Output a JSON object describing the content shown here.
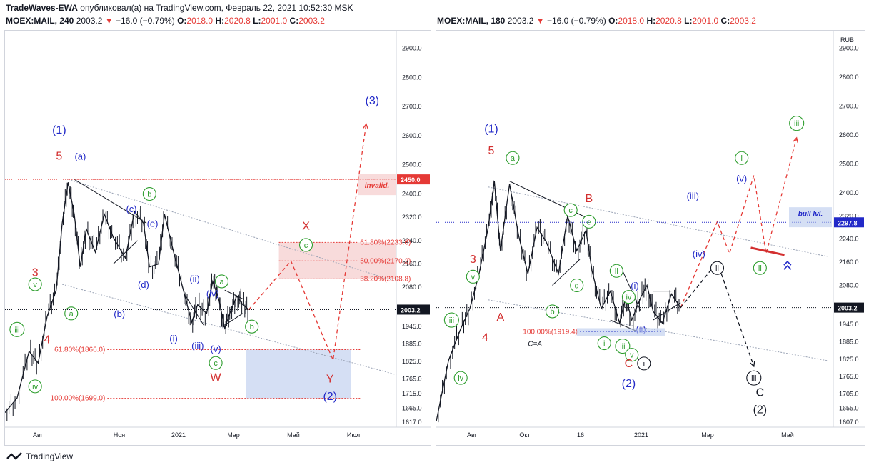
{
  "header": {
    "publisher": "TradeWaves-EWA",
    "published_text": "опубликовал(а) на TradingView.com, Февраль 22, 2021 10:52:30 MSK"
  },
  "colors": {
    "wave_blue": "#2229c8",
    "wave_green": "#2e9e2e",
    "wave_red": "#d32f2f",
    "target_red": "#e53935",
    "candle": "#131722",
    "zone_red": "#f3c3c3",
    "zone_blue": "#b9c9ec"
  },
  "panels": [
    {
      "symbol": "MOEX:MAIL, 240",
      "last": "2003.2",
      "change": "−16.0 (−0.79%)",
      "o_label": "O:",
      "o": "2018.0",
      "h_label": "H:",
      "h": "2020.8",
      "l_label": "L:",
      "l": "2001.0",
      "c_label": "C:",
      "c": "2003.2"
    },
    {
      "symbol": "MOEX:MAIL, 180",
      "last": "2003.2",
      "change": "−16.0 (−0.79%)",
      "o_label": "O:",
      "o": "2018.0",
      "h_label": "H:",
      "h": "2020.8",
      "l_label": "L:",
      "l": "2001.0",
      "c_label": "C:",
      "c": "2003.2"
    }
  ],
  "footer": {
    "brand": "TradingView"
  },
  "chart_data": [
    {
      "type": "line",
      "timeframe": "240",
      "y_ticks": [
        "2900.0",
        "2800.0",
        "2700.0",
        "2600.0",
        "2500.0",
        "2400.0",
        "2320.0",
        "2240.0",
        "2160.0",
        "2080.0",
        "1945.0",
        "1885.0",
        "1825.0",
        "1765.0",
        "1715.0",
        "1665.0",
        "1617.0"
      ],
      "x_ticks": [
        "Авг",
        "Ноя",
        "2021",
        "Мар",
        "Май",
        "Июл"
      ],
      "ylim": [
        1600,
        2960
      ],
      "price_scale_tags": [
        {
          "text": "2450.0",
          "value": 2450,
          "bg": "#e53935"
        },
        {
          "text": "2003.2",
          "value": 2003.2,
          "bg": "#131722"
        }
      ],
      "levels": [
        {
          "text": "61.80%(2233.6)",
          "value": 2233.6
        },
        {
          "text": "50.00%(2170.2)",
          "value": 2170.2
        },
        {
          "text": "38.20%(2108.8)",
          "value": 2108.8
        },
        {
          "text": "61.80%(1866.0)",
          "value": 1866.0
        },
        {
          "text": "100.00%(1699.0)",
          "value": 1699.0
        }
      ],
      "invalid_label": "invalid.",
      "price_path": [
        [
          0,
          1650
        ],
        [
          4,
          1700
        ],
        [
          8,
          1860
        ],
        [
          11,
          1820
        ],
        [
          14,
          1980
        ],
        [
          17,
          2070
        ],
        [
          19,
          2300
        ],
        [
          21,
          2440
        ],
        [
          23,
          2330
        ],
        [
          25,
          2150
        ],
        [
          27,
          2280
        ],
        [
          30,
          2200
        ],
        [
          33,
          2330
        ],
        [
          36,
          2250
        ],
        [
          40,
          2180
        ],
        [
          43,
          2340
        ],
        [
          46,
          2300
        ],
        [
          48,
          2150
        ],
        [
          51,
          2160
        ],
        [
          53,
          2330
        ],
        [
          56,
          2200
        ],
        [
          59,
          2080
        ],
        [
          62,
          1960
        ],
        [
          64,
          2020
        ],
        [
          67,
          1990
        ],
        [
          69,
          2100
        ],
        [
          71,
          2040
        ],
        [
          73,
          1940
        ],
        [
          75,
          2000
        ],
        [
          77,
          2050
        ],
        [
          79,
          2020
        ],
        [
          81,
          2003
        ]
      ],
      "projection_red": [
        [
          81,
          2003
        ],
        [
          95,
          2170
        ],
        [
          109,
          1830
        ],
        [
          120,
          2640
        ]
      ],
      "wave_labels": [
        {
          "t": "(1)",
          "x": 18,
          "y": 2620,
          "c": "blue"
        },
        {
          "t": "5",
          "x": 18,
          "y": 2530,
          "c": "red"
        },
        {
          "t": "(a)",
          "x": 25,
          "y": 2530,
          "c": "blue"
        },
        {
          "t": "(b)",
          "x": 38,
          "y": 1990,
          "c": "blue"
        },
        {
          "t": "(c)",
          "x": 42,
          "y": 2350,
          "c": "blue"
        },
        {
          "t": "(d)",
          "x": 46,
          "y": 2090,
          "c": "blue"
        },
        {
          "t": "(e)",
          "x": 49,
          "y": 2300,
          "c": "blue"
        },
        {
          "t": "b",
          "x": 48,
          "y": 2400,
          "c": "green",
          "circled": true
        },
        {
          "t": "3",
          "x": 10,
          "y": 2130,
          "c": "red"
        },
        {
          "t": "v",
          "x": 10,
          "y": 2090,
          "c": "green",
          "circled": true
        },
        {
          "t": "a",
          "x": 22,
          "y": 1990,
          "c": "green",
          "circled": true
        },
        {
          "t": "iii",
          "x": 4,
          "y": 1935,
          "c": "green",
          "circled": true
        },
        {
          "t": "4",
          "x": 14,
          "y": 1900,
          "c": "red"
        },
        {
          "t": "iv",
          "x": 10,
          "y": 1740,
          "c": "green",
          "circled": true
        },
        {
          "t": "(i)",
          "x": 56,
          "y": 1905,
          "c": "blue"
        },
        {
          "t": "(ii)",
          "x": 63,
          "y": 2110,
          "c": "blue"
        },
        {
          "t": "(iii)",
          "x": 64,
          "y": 1880,
          "c": "blue"
        },
        {
          "t": "(iv)",
          "x": 69,
          "y": 2060,
          "c": "blue"
        },
        {
          "t": "(v)",
          "x": 70,
          "y": 1870,
          "c": "blue"
        },
        {
          "t": "a",
          "x": 72,
          "y": 2100,
          "c": "green",
          "circled": true
        },
        {
          "t": "b",
          "x": 82,
          "y": 1945,
          "c": "green",
          "circled": true
        },
        {
          "t": "c",
          "x": 70,
          "y": 1820,
          "c": "green",
          "circled": true
        },
        {
          "t": "W",
          "x": 70,
          "y": 1770,
          "c": "red"
        },
        {
          "t": "X",
          "x": 100,
          "y": 2290,
          "c": "red"
        },
        {
          "t": "c",
          "x": 100,
          "y": 2225,
          "c": "green",
          "circled": true
        },
        {
          "t": "Y",
          "x": 108,
          "y": 1765,
          "c": "red"
        },
        {
          "t": "(2)",
          "x": 108,
          "y": 1705,
          "c": "blue"
        },
        {
          "t": "(3)",
          "x": 122,
          "y": 2720,
          "c": "blue"
        }
      ]
    },
    {
      "type": "line",
      "timeframe": "180",
      "y_ticks": [
        "2900.0",
        "2800.0",
        "2700.0",
        "2600.0",
        "2500.0",
        "2400.0",
        "2320.0",
        "2240.0",
        "2160.0",
        "2080.0",
        "1945.0",
        "1885.0",
        "1825.0",
        "1765.0",
        "1705.0",
        "1655.0",
        "1607.0"
      ],
      "x_ticks": [
        "Авг",
        "Окт",
        "16",
        "2021",
        "Мар",
        "Май"
      ],
      "currency": "RUB",
      "ylim": [
        1590,
        2960
      ],
      "price_scale_tags": [
        {
          "text": "2297.8",
          "value": 2297.8,
          "bg": "#2229c8"
        },
        {
          "text": "2003.2",
          "value": 2003.2,
          "bg": "#131722"
        }
      ],
      "levels": [
        {
          "text": "100.00%(1919.4)",
          "value": 1919.4
        }
      ],
      "bull_label": "bull lvl.",
      "ca_label": "C=A",
      "price_path": [
        [
          0,
          1610
        ],
        [
          4,
          1820
        ],
        [
          8,
          1930
        ],
        [
          11,
          2000
        ],
        [
          14,
          2120
        ],
        [
          17,
          2280
        ],
        [
          19,
          2440
        ],
        [
          21,
          2200
        ],
        [
          24,
          2430
        ],
        [
          27,
          2250
        ],
        [
          30,
          2120
        ],
        [
          33,
          2280
        ],
        [
          36,
          2230
        ],
        [
          40,
          2120
        ],
        [
          43,
          2320
        ],
        [
          46,
          2200
        ],
        [
          49,
          2270
        ],
        [
          51,
          2130
        ],
        [
          54,
          2000
        ],
        [
          57,
          2060
        ],
        [
          60,
          1950
        ],
        [
          62,
          2040
        ],
        [
          64,
          1960
        ],
        [
          67,
          2040
        ],
        [
          69,
          2080
        ],
        [
          71,
          1990
        ],
        [
          74,
          1950
        ],
        [
          77,
          2050
        ],
        [
          80,
          2003
        ]
      ],
      "projection_red": [
        [
          80,
          2003
        ],
        [
          92,
          2300
        ],
        [
          96,
          2190
        ],
        [
          104,
          2460
        ],
        [
          108,
          2190
        ],
        [
          118,
          2590
        ]
      ],
      "projection_black": [
        [
          80,
          2003
        ],
        [
          92,
          2160
        ],
        [
          104,
          1800
        ]
      ],
      "wave_labels": [
        {
          "t": "(1)",
          "x": 18,
          "y": 2620,
          "c": "blue"
        },
        {
          "t": "5",
          "x": 18,
          "y": 2545,
          "c": "red"
        },
        {
          "t": "a",
          "x": 25,
          "y": 2520,
          "c": "green",
          "circled": true
        },
        {
          "t": "B",
          "x": 50,
          "y": 2380,
          "c": "red"
        },
        {
          "t": "c",
          "x": 44,
          "y": 2340,
          "c": "green",
          "circled": true
        },
        {
          "t": "e",
          "x": 50,
          "y": 2300,
          "c": "green",
          "circled": true
        },
        {
          "t": "d",
          "x": 46,
          "y": 2080,
          "c": "green",
          "circled": true
        },
        {
          "t": "b",
          "x": 38,
          "y": 1990,
          "c": "green",
          "circled": true
        },
        {
          "t": "3",
          "x": 12,
          "y": 2170,
          "c": "red"
        },
        {
          "t": "v",
          "x": 12,
          "y": 2110,
          "c": "green",
          "circled": true
        },
        {
          "t": "A",
          "x": 21,
          "y": 1970,
          "c": "red"
        },
        {
          "t": "iii",
          "x": 5,
          "y": 1960,
          "c": "green",
          "circled": true
        },
        {
          "t": "4",
          "x": 16,
          "y": 1900,
          "c": "red"
        },
        {
          "t": "iv",
          "x": 8,
          "y": 1760,
          "c": "green",
          "circled": true
        },
        {
          "t": "ii",
          "x": 59,
          "y": 2130,
          "c": "green",
          "circled": true
        },
        {
          "t": "i",
          "x": 55,
          "y": 1880,
          "c": "green",
          "circled": true
        },
        {
          "t": "iii",
          "x": 61,
          "y": 1870,
          "c": "green",
          "circled": true
        },
        {
          "t": "iv",
          "x": 63,
          "y": 2040,
          "c": "green",
          "circled": true
        },
        {
          "t": "v",
          "x": 64,
          "y": 1840,
          "c": "green",
          "circled": true
        },
        {
          "t": "(i)",
          "x": 65,
          "y": 2080,
          "c": "blue"
        },
        {
          "t": "(ii)",
          "x": 67,
          "y": 1930,
          "c": "blue"
        },
        {
          "t": "C",
          "x": 63,
          "y": 1810,
          "c": "red"
        },
        {
          "t": "(2)",
          "x": 63,
          "y": 1740,
          "c": "blue"
        },
        {
          "t": "i",
          "x": 68,
          "y": 1810,
          "c": "black",
          "circled": true
        },
        {
          "t": "(iii)",
          "x": 84,
          "y": 2390,
          "c": "blue"
        },
        {
          "t": "(iv)",
          "x": 86,
          "y": 2190,
          "c": "blue"
        },
        {
          "t": "(v)",
          "x": 100,
          "y": 2450,
          "c": "blue"
        },
        {
          "t": "i",
          "x": 100,
          "y": 2520,
          "c": "green",
          "circled": true
        },
        {
          "t": "ii",
          "x": 92,
          "y": 2140,
          "c": "black",
          "circled": true
        },
        {
          "t": "ii",
          "x": 106,
          "y": 2140,
          "c": "green",
          "circled": true
        },
        {
          "t": "iii",
          "x": 118,
          "y": 2640,
          "c": "green",
          "circled": true
        },
        {
          "t": "iii",
          "x": 104,
          "y": 1760,
          "c": "black",
          "circled": true
        },
        {
          "t": "C",
          "x": 106,
          "y": 1710,
          "c": "black"
        },
        {
          "t": "(2)",
          "x": 106,
          "y": 1650,
          "c": "black"
        }
      ]
    }
  ]
}
